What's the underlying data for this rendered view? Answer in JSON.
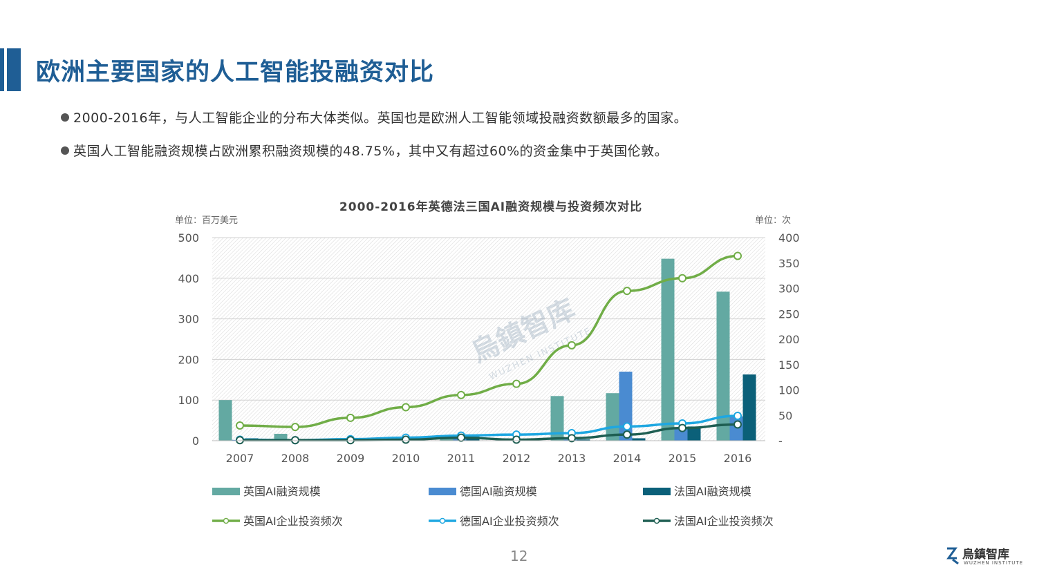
{
  "page": {
    "title": "欧洲主要国家的人工智能投融资对比",
    "bullets": [
      "2000-2016年，与人工智能企业的分布大体类似。英国也是欧洲人工智能领域投融资数额最多的国家。",
      "英国人工智能融资规模占欧洲累积融资规模的48.75%，其中又有超过60%的资金集中于英国伦敦。"
    ],
    "page_number": "12",
    "logo_text": "烏鎮智库",
    "logo_sub": "WUZHEN INSTITUTE",
    "watermark_text": "烏鎮智库",
    "watermark_sub": "WUZHEN INSTITUTE"
  },
  "colors": {
    "title": "#1f5e95",
    "uk_bar": "#63a9a2",
    "de_bar": "#4a8bd1",
    "fr_bar": "#0b6079",
    "uk_line": "#70ad47",
    "de_line": "#1ea7e1",
    "fr_line": "#1e5e52"
  },
  "chart_data": {
    "type": "bar",
    "title": "2000-2016年英德法三国AI融资规模与投资频次对比",
    "y_left_unit": "单位：百万美元",
    "y_right_unit": "单位：次",
    "categories": [
      "2007",
      "2008",
      "2009",
      "2010",
      "2011",
      "2012",
      "2013",
      "2014",
      "2015",
      "2016"
    ],
    "ylim_left": [
      0,
      500
    ],
    "ylim_right": [
      0,
      400
    ],
    "left_ticks": [
      "0",
      "100",
      "200",
      "300",
      "400",
      "500"
    ],
    "right_ticks": [
      "-",
      "50",
      "100",
      "150",
      "200",
      "250",
      "300",
      "350",
      "400"
    ],
    "bar_series": [
      {
        "name": "英国AI融资规模",
        "values": [
          100,
          17,
          2,
          4,
          6,
          3,
          110,
          117,
          448,
          367
        ]
      },
      {
        "name": "德国AI融资规模",
        "values": [
          2,
          1,
          1,
          2,
          5,
          2,
          3,
          170,
          30,
          60
        ]
      },
      {
        "name": "法国AI融资规模",
        "values": [
          6,
          1,
          1,
          1,
          10,
          4,
          3,
          6,
          35,
          163
        ]
      }
    ],
    "line_series": [
      {
        "name": "英国AI企业投资频次",
        "values": [
          30,
          27,
          45,
          66,
          90,
          112,
          188,
          295,
          320,
          364
        ]
      },
      {
        "name": "德国AI企业投资频次",
        "values": [
          2,
          1,
          3,
          6,
          10,
          12,
          15,
          28,
          34,
          49
        ]
      },
      {
        "name": "法国AI企业投资频次",
        "values": [
          1,
          1,
          1,
          2,
          6,
          2,
          5,
          12,
          25,
          32
        ]
      }
    ],
    "grid": true,
    "legend_position": "bottom"
  }
}
